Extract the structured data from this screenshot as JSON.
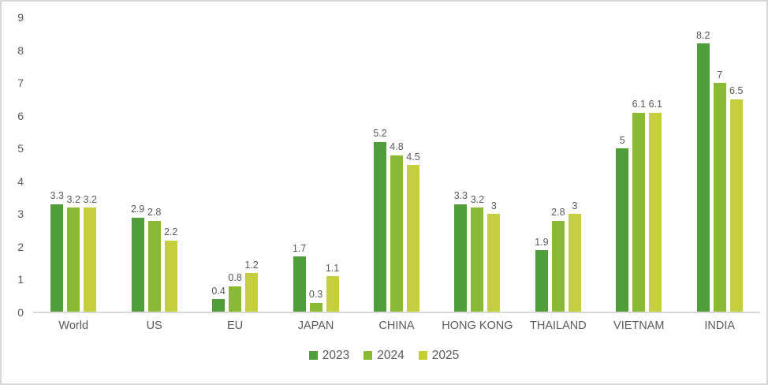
{
  "chart_data": {
    "type": "bar",
    "title": "",
    "xlabel": "",
    "ylabel": "",
    "categories": [
      "World",
      "US",
      "EU",
      "JAPAN",
      "CHINA",
      "HONG KONG",
      "THAILAND",
      "VIETNAM",
      "INDIA"
    ],
    "series": [
      {
        "name": "2023",
        "color": "#509E3B",
        "values": [
          3.3,
          2.9,
          0.4,
          1.7,
          5.2,
          3.3,
          1.9,
          5,
          8.2
        ],
        "labels": [
          "3.3",
          "2.9",
          "0.4",
          "1.7",
          "5.2",
          "3.3",
          "1.9",
          "5",
          "8.2"
        ]
      },
      {
        "name": "2024",
        "color": "#8AB934",
        "values": [
          3.2,
          2.8,
          0.8,
          0.3,
          4.8,
          3.2,
          2.8,
          6.1,
          7
        ],
        "labels": [
          "3.2",
          "2.8",
          "0.8",
          "0.3",
          "4.8",
          "3.2",
          "2.8",
          "6.1",
          "7"
        ]
      },
      {
        "name": "2025",
        "color": "#C5CE3F",
        "values": [
          3.2,
          2.2,
          1.2,
          1.1,
          4.5,
          3,
          3,
          6.1,
          6.5
        ],
        "labels": [
          "3.2",
          "2.2",
          "1.2",
          "1.1",
          "4.5",
          "3",
          "3",
          "6.1",
          "6.5"
        ]
      }
    ],
    "ylim": [
      0,
      9
    ],
    "ytick_step": 1,
    "ytick_labels": [
      "0",
      "1",
      "2",
      "3",
      "4",
      "5",
      "6",
      "7",
      "8",
      "9"
    ],
    "grid": false,
    "legend_position": "bottom",
    "data_labels": true
  },
  "styles": {
    "background_color": "#ffffff",
    "frame_border_color": "#d8d8d8",
    "axis_line_color": "#d9d9d9",
    "text_color": "#595959"
  }
}
